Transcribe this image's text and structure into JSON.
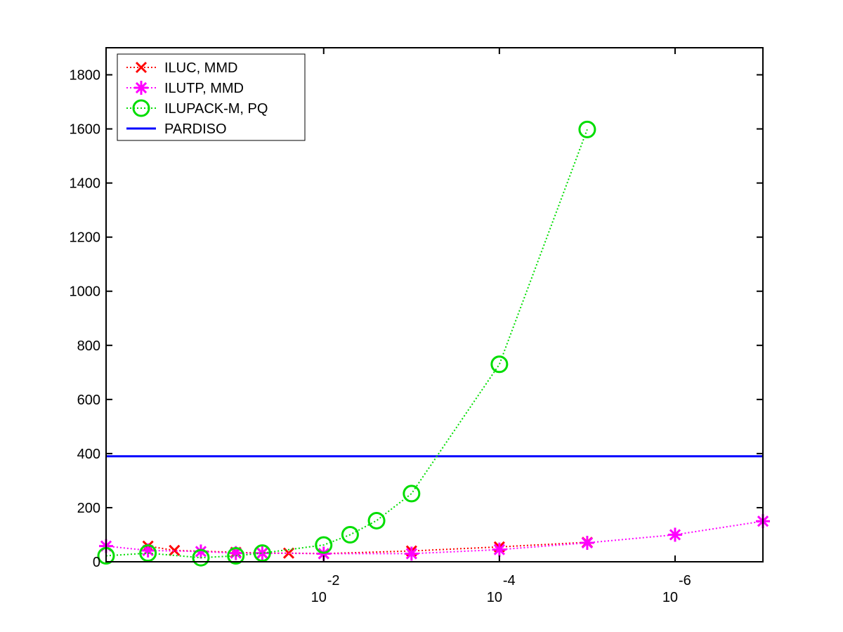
{
  "chart_data": {
    "type": "line",
    "x_scale": "log",
    "x_reversed": true,
    "xlim": [
      3,
      1e-07
    ],
    "ylim": [
      0,
      1900
    ],
    "y_ticks": [
      0,
      200,
      400,
      600,
      800,
      1000,
      1200,
      1400,
      1600,
      1800
    ],
    "x_ticks": [
      {
        "value": 0.01,
        "base": "10",
        "exponent": "-2"
      },
      {
        "value": 0.0001,
        "base": "10",
        "exponent": "-4"
      },
      {
        "value": 1e-06,
        "base": "10",
        "exponent": "-6"
      }
    ],
    "legend_position": "top-left",
    "grid": false,
    "series": [
      {
        "name": "ILUC, MMD",
        "color": "#ff0000",
        "marker": "x",
        "line_style": "dotted",
        "x": [
          1,
          0.5,
          0.1,
          0.05,
          0.025,
          0.01,
          0.001,
          0.0001,
          1e-05
        ],
        "y": [
          58,
          42,
          35,
          32,
          32,
          30,
          40,
          55,
          72
        ]
      },
      {
        "name": "ILUTP, MMD",
        "color": "#ff00ff",
        "marker": "asterisk",
        "line_style": "dotted",
        "x": [
          3,
          1,
          0.25,
          0.1,
          0.05,
          0.01,
          0.001,
          0.0001,
          1e-05,
          1e-06,
          1e-07
        ],
        "y": [
          58,
          42,
          38,
          32,
          32,
          30,
          30,
          45,
          70,
          100,
          150
        ]
      },
      {
        "name": "ILUPACK-M, PQ",
        "color": "#00dd00",
        "marker": "circle",
        "line_style": "dotted",
        "x": [
          3,
          1,
          0.25,
          0.1,
          0.05,
          0.01,
          0.005,
          0.0025,
          0.001,
          0.0001,
          1e-05
        ],
        "y": [
          22,
          32,
          15,
          22,
          32,
          62,
          100,
          152,
          252,
          730,
          1598
        ]
      },
      {
        "name": "PARDISO",
        "color": "#0000ff",
        "marker": "none",
        "line_style": "solid",
        "x": [
          3,
          1e-07
        ],
        "y": [
          390,
          390
        ]
      }
    ]
  }
}
